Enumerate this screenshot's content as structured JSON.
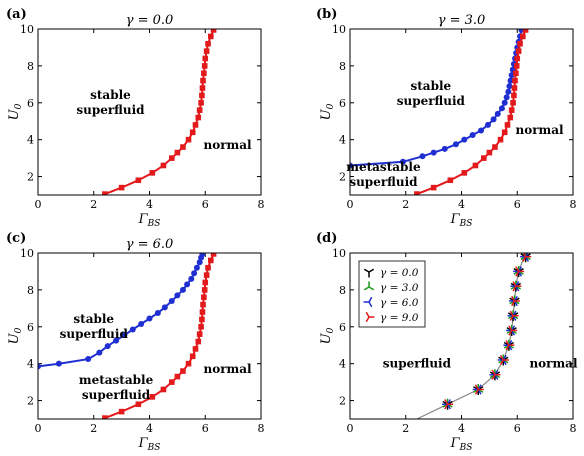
{
  "chart_data": [
    {
      "panel": "(a)",
      "type": "line",
      "title": "γ = 0.0",
      "xlabel": "Γ_BS",
      "ylabel": "U_0",
      "xlim": [
        0,
        8
      ],
      "ylim": [
        1,
        10
      ],
      "xticks": [
        "0",
        "2",
        "4",
        "6",
        "8"
      ],
      "yticks": [
        "2",
        "4",
        "6",
        "8",
        "10"
      ],
      "annotations": [
        {
          "lines": [
            "stable",
            "superfluid"
          ],
          "at": [
            2.6,
            6.2
          ]
        },
        {
          "lines": [
            "normal"
          ],
          "at": [
            6.8,
            3.5
          ]
        }
      ],
      "series": [
        {
          "color": "#e31a1c",
          "marker": "square",
          "x": [
            2.4,
            3.0,
            3.6,
            4.1,
            4.5,
            4.8,
            5.0,
            5.2,
            5.4,
            5.55,
            5.65,
            5.75,
            5.8,
            5.85,
            5.88,
            5.9,
            5.92,
            5.95,
            5.98,
            6.0,
            6.05,
            6.1,
            6.2,
            6.3
          ],
          "y": [
            1.05,
            1.4,
            1.8,
            2.2,
            2.6,
            3.0,
            3.3,
            3.6,
            4.0,
            4.4,
            4.8,
            5.2,
            5.6,
            6.0,
            6.4,
            6.8,
            7.2,
            7.6,
            8.0,
            8.4,
            8.8,
            9.2,
            9.6,
            9.95
          ]
        }
      ]
    },
    {
      "panel": "(b)",
      "type": "line",
      "title": "γ = 3.0",
      "xlabel": "Γ_BS",
      "ylabel": "U_0",
      "xlim": [
        0,
        8
      ],
      "ylim": [
        1,
        10
      ],
      "xticks": [
        "0",
        "2",
        "4",
        "6",
        "8"
      ],
      "yticks": [
        "2",
        "4",
        "6",
        "8",
        "10"
      ],
      "annotations": [
        {
          "lines": [
            "stable",
            "superfluid"
          ],
          "at": [
            2.9,
            6.7
          ]
        },
        {
          "lines": [
            "normal"
          ],
          "at": [
            6.8,
            4.3
          ]
        },
        {
          "lines": [
            "metastable",
            "superfluid"
          ],
          "at": [
            1.2,
            2.3
          ]
        }
      ],
      "series": [
        {
          "color": "#1f2fd1",
          "marker": "circle",
          "x": [
            0.0,
            1.9,
            2.6,
            3.0,
            3.4,
            3.8,
            4.1,
            4.4,
            4.7,
            4.95,
            5.15,
            5.3,
            5.45,
            5.55,
            5.62,
            5.68,
            5.72,
            5.76,
            5.8,
            5.84,
            5.88,
            5.92,
            5.96,
            6.0,
            6.05,
            6.1,
            6.15
          ],
          "y": [
            2.6,
            2.8,
            3.1,
            3.3,
            3.5,
            3.75,
            4.0,
            4.25,
            4.5,
            4.8,
            5.1,
            5.4,
            5.7,
            6.0,
            6.3,
            6.6,
            6.9,
            7.2,
            7.5,
            7.8,
            8.1,
            8.4,
            8.7,
            9.0,
            9.3,
            9.6,
            9.95
          ]
        },
        {
          "color": "#e31a1c",
          "marker": "square",
          "x": [
            2.4,
            3.0,
            3.6,
            4.1,
            4.5,
            4.8,
            5.0,
            5.2,
            5.4,
            5.55,
            5.65,
            5.75,
            5.8,
            5.85,
            5.88,
            5.9,
            5.92,
            5.95,
            5.98,
            6.0,
            6.05,
            6.1,
            6.2,
            6.3
          ],
          "y": [
            1.05,
            1.4,
            1.8,
            2.2,
            2.6,
            3.0,
            3.3,
            3.6,
            4.0,
            4.4,
            4.8,
            5.2,
            5.6,
            6.0,
            6.4,
            6.8,
            7.2,
            7.6,
            8.0,
            8.4,
            8.8,
            9.2,
            9.6,
            9.95
          ]
        }
      ]
    },
    {
      "panel": "(c)",
      "type": "line",
      "title": "γ = 6.0",
      "xlabel": "Γ_BS",
      "ylabel": "U_0",
      "xlim": [
        0,
        8
      ],
      "ylim": [
        1,
        10
      ],
      "xticks": [
        "0",
        "2",
        "4",
        "6",
        "8"
      ],
      "yticks": [
        "2",
        "4",
        "6",
        "8",
        "10"
      ],
      "annotations": [
        {
          "lines": [
            "stable",
            "superfluid"
          ],
          "at": [
            2.0,
            6.2
          ]
        },
        {
          "lines": [
            "normal"
          ],
          "at": [
            6.8,
            3.5
          ]
        },
        {
          "lines": [
            "metastable",
            "superfluid"
          ],
          "at": [
            2.8,
            2.9
          ]
        }
      ],
      "series": [
        {
          "color": "#1f2fd1",
          "marker": "circle",
          "x": [
            0.0,
            0.75,
            1.8,
            2.2,
            2.5,
            2.8,
            3.1,
            3.4,
            3.7,
            4.0,
            4.3,
            4.55,
            4.8,
            5.0,
            5.2,
            5.35,
            5.5,
            5.6,
            5.7,
            5.8,
            5.85,
            5.9
          ],
          "y": [
            3.85,
            4.0,
            4.25,
            4.6,
            4.95,
            5.25,
            5.55,
            5.85,
            6.15,
            6.45,
            6.75,
            7.05,
            7.4,
            7.7,
            8.0,
            8.3,
            8.6,
            8.9,
            9.2,
            9.5,
            9.75,
            9.95
          ]
        },
        {
          "color": "#e31a1c",
          "marker": "square",
          "x": [
            2.4,
            3.0,
            3.6,
            4.1,
            4.5,
            4.8,
            5.0,
            5.2,
            5.4,
            5.55,
            5.65,
            5.75,
            5.8,
            5.85,
            5.88,
            5.9,
            5.92,
            5.95,
            5.98,
            6.0,
            6.05,
            6.1,
            6.2,
            6.3
          ],
          "y": [
            1.05,
            1.4,
            1.8,
            2.2,
            2.6,
            3.0,
            3.3,
            3.6,
            4.0,
            4.4,
            4.8,
            5.2,
            5.6,
            6.0,
            6.4,
            6.8,
            7.2,
            7.6,
            8.0,
            8.4,
            8.8,
            9.2,
            9.6,
            9.95
          ]
        }
      ]
    },
    {
      "panel": "(d)",
      "type": "line",
      "title": "",
      "xlabel": "Γ_BS",
      "ylabel": "U_0",
      "xlim": [
        0,
        8
      ],
      "ylim": [
        1,
        10
      ],
      "xticks": [
        "0",
        "2",
        "4",
        "6",
        "8"
      ],
      "yticks": [
        "2",
        "4",
        "6",
        "8",
        "10"
      ],
      "legend": "top-left",
      "annotations": [
        {
          "lines": [
            "superfluid"
          ],
          "at": [
            2.4,
            3.8
          ]
        },
        {
          "lines": [
            "normal"
          ],
          "at": [
            7.3,
            3.8
          ]
        }
      ],
      "curve": {
        "color": "#888888",
        "x": [
          2.4,
          3.5,
          4.6,
          5.2,
          5.5,
          5.7,
          5.8,
          5.85,
          5.9,
          5.95,
          6.05,
          6.2,
          6.35
        ],
        "y": [
          1.0,
          1.8,
          2.6,
          3.4,
          4.2,
          5.0,
          5.8,
          6.6,
          7.4,
          8.2,
          9.0,
          9.6,
          10.0
        ]
      },
      "markers_x": [
        3.5,
        4.6,
        5.2,
        5.5,
        5.7,
        5.8,
        5.85,
        5.9,
        5.95,
        6.05,
        6.3
      ],
      "markers_y": [
        1.8,
        2.6,
        3.4,
        4.2,
        5.0,
        5.8,
        6.6,
        7.4,
        8.2,
        9.0,
        9.8
      ],
      "series": [
        {
          "name": "γ = 0.0",
          "color": "#000000",
          "rot": 0
        },
        {
          "name": "γ = 3.0",
          "color": "#1a9a1a",
          "rot": 180
        },
        {
          "name": "γ = 6.0",
          "color": "#1f2fd1",
          "rot": 90
        },
        {
          "name": "γ = 9.0",
          "color": "#e31a1c",
          "rot": 270
        }
      ]
    }
  ]
}
